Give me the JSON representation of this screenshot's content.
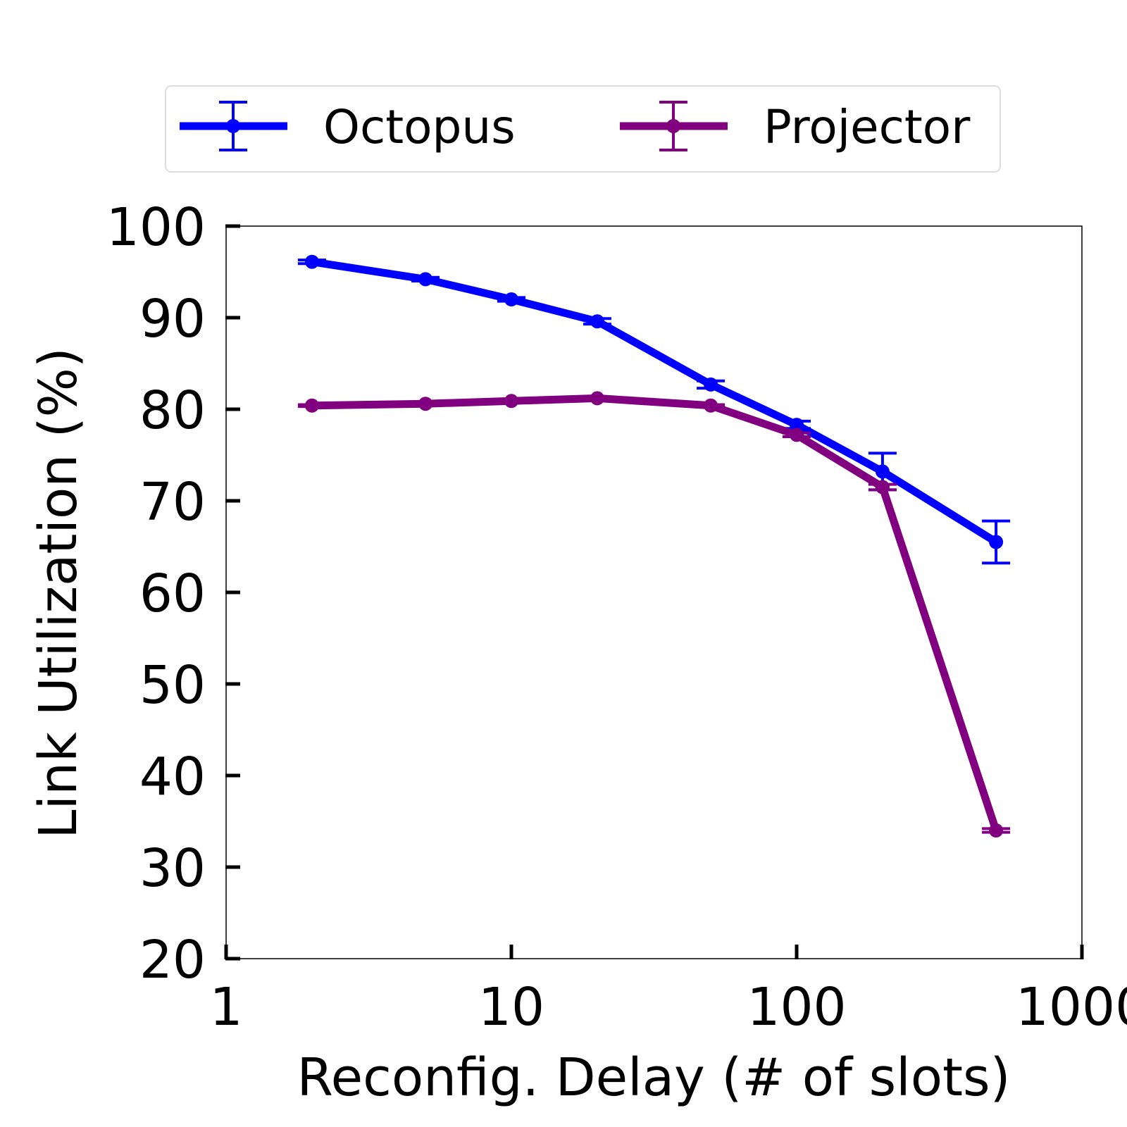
{
  "chart_data": {
    "type": "line",
    "title": "",
    "xlabel": "Reconfig. Delay (# of slots)",
    "ylabel": "Link Utilization (%)",
    "xscale": "log",
    "xlim": [
      1,
      1000
    ],
    "ylim": [
      20,
      100
    ],
    "xticks": [
      1,
      10,
      100,
      1000
    ],
    "xtick_labels": [
      "1",
      "10",
      "100",
      "1000"
    ],
    "yticks": [
      20,
      30,
      40,
      50,
      60,
      70,
      80,
      90,
      100
    ],
    "ytick_labels": [
      "20",
      "30",
      "40",
      "50",
      "60",
      "70",
      "80",
      "90",
      "100"
    ],
    "grid": false,
    "legend_position": "top",
    "x": [
      2,
      5,
      10,
      20,
      50,
      100,
      200,
      500
    ],
    "series": [
      {
        "name": "Octopus",
        "color": "#0000ff",
        "values": [
          96.1,
          94.2,
          92.0,
          89.6,
          82.7,
          78.3,
          73.2,
          65.5
        ],
        "error": [
          0.2,
          0.2,
          0.2,
          0.3,
          0.4,
          0.4,
          2.0,
          2.3
        ]
      },
      {
        "name": "Projector",
        "color": "#800080",
        "values": [
          80.4,
          80.6,
          80.9,
          81.2,
          80.4,
          77.2,
          71.5,
          34.0
        ],
        "error": [
          0.1,
          0.1,
          0.1,
          0.1,
          0.1,
          0.2,
          0.3,
          0.2
        ]
      }
    ]
  }
}
